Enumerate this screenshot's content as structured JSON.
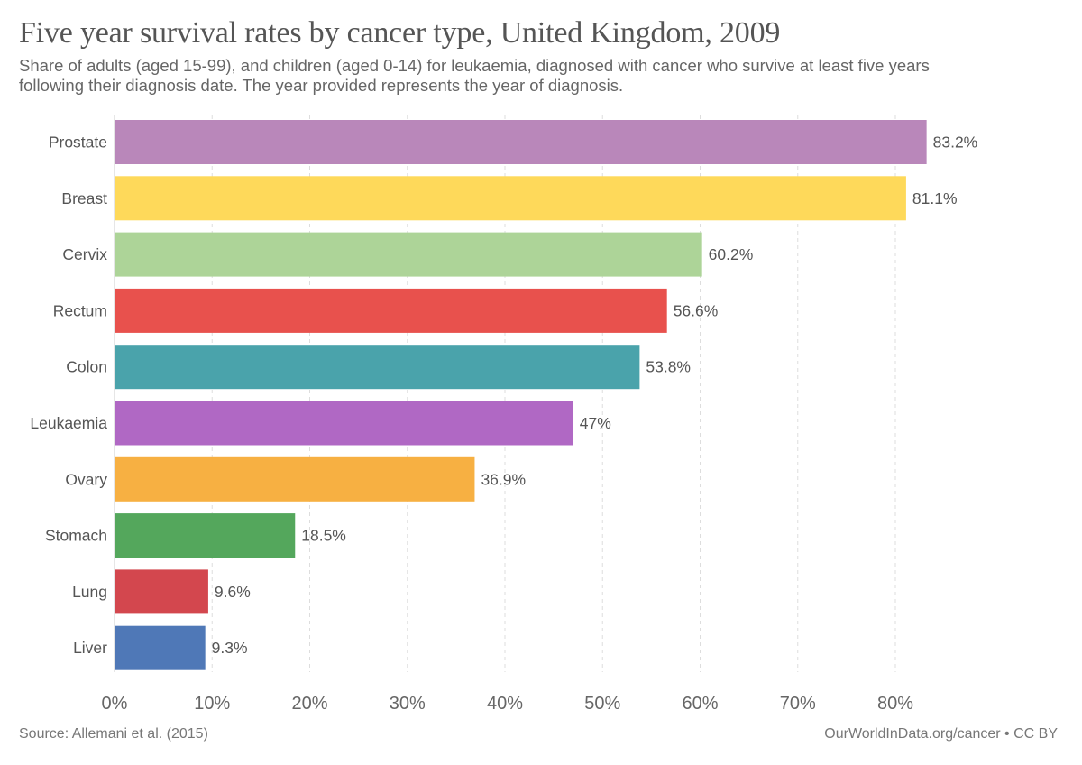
{
  "chart_data": {
    "type": "bar",
    "orientation": "horizontal",
    "title": "Five year survival rates by cancer type, United Kingdom, 2009",
    "subtitle": "Share of adults (aged 15-99), and children (aged 0-14) for leukaemia, diagnosed with cancer who survive at least five years following their diagnosis date. The year provided represents the year of diagnosis.",
    "categories": [
      "Prostate",
      "Breast",
      "Cervix",
      "Rectum",
      "Colon",
      "Leukaemia",
      "Ovary",
      "Stomach",
      "Lung",
      "Liver"
    ],
    "values": [
      83.2,
      81.1,
      60.2,
      56.6,
      53.8,
      47,
      36.9,
      18.5,
      9.6,
      9.3
    ],
    "value_labels": [
      "83.2%",
      "81.1%",
      "60.2%",
      "56.6%",
      "53.8%",
      "47%",
      "36.9%",
      "18.5%",
      "9.6%",
      "9.3%"
    ],
    "colors": [
      "#b987ba",
      "#fed95a",
      "#add498",
      "#e8514d",
      "#4aa3ab",
      "#b068c4",
      "#f7b042",
      "#54a75c",
      "#d3474e",
      "#4f78b7"
    ],
    "xlabel": "",
    "ylabel": "",
    "xlim": [
      0,
      83.2
    ],
    "x_ticks": [
      0,
      10,
      20,
      30,
      40,
      50,
      60,
      70,
      80
    ],
    "x_tick_labels": [
      "0%",
      "10%",
      "20%",
      "30%",
      "40%",
      "50%",
      "60%",
      "70%",
      "80%"
    ],
    "grid": "vertical dashed",
    "legend": "none"
  },
  "footer": {
    "source": "Source: Allemani et al. (2015)",
    "credit": "OurWorldInData.org/cancer • CC BY"
  }
}
